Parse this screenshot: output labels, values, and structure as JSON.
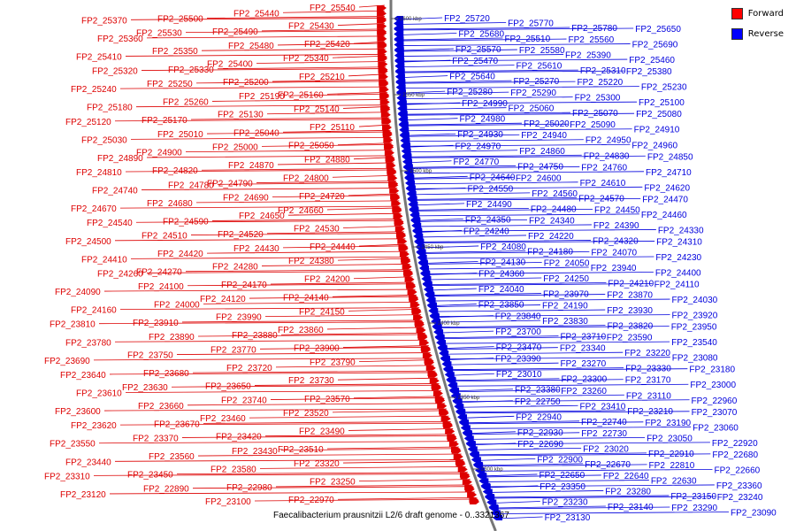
{
  "caption": "Faecalibacterium prausnitzii L2/6 draft genome - 0..3321367",
  "legend": [
    {
      "label": "Forward",
      "color": "#ff0000"
    },
    {
      "label": "Reverse",
      "color": "#0000ff"
    }
  ],
  "colors": {
    "forward": "#dd0000",
    "reverse": "#0000dd",
    "backbone": "#777777"
  },
  "scale_ticks": [
    "2600 kbp",
    "2550 kbp",
    "2500 kbp",
    "2450 kbp",
    "2400 kbp",
    "2350 kbp",
    "2300 kbp"
  ],
  "forward_genes": [
    "FP2_25540",
    "FP2_25440",
    "FP2_25500",
    "FP2_25370",
    "FP2_25430",
    "FP2_25490",
    "FP2_25530",
    "FP2_25360",
    "FP2_25420",
    "FP2_25480",
    "FP2_25350",
    "FP2_25410",
    "FP2_25340",
    "FP2_25400",
    "FP2_25330",
    "FP2_25320",
    "FP2_25210",
    "FP2_25200",
    "FP2_25250",
    "FP2_25240",
    "FP2_25160",
    "FP2_25190",
    "FP2_25260",
    "FP2_25180",
    "FP2_25140",
    "FP2_25130",
    "FP2_25170",
    "FP2_25120",
    "FP2_25110",
    "FP2_25040",
    "FP2_25010",
    "FP2_25030",
    "FP2_25050",
    "FP2_25000",
    "FP2_24900",
    "FP2_24890",
    "FP2_24880",
    "FP2_24870",
    "FP2_24820",
    "FP2_24810",
    "FP2_24800",
    "FP2_24790",
    "FP2_24780",
    "FP2_24740",
    "FP2_24720",
    "FP2_24690",
    "FP2_24680",
    "FP2_24670",
    "FP2_24660",
    "FP2_24650",
    "FP2_24590",
    "FP2_24540",
    "FP2_24530",
    "FP2_24520",
    "FP2_24510",
    "FP2_24500",
    "FP2_24440",
    "FP2_24430",
    "FP2_24420",
    "FP2_24410",
    "FP2_24380",
    "FP2_24280",
    "FP2_24270",
    "FP2_24260",
    "FP2_24200",
    "FP2_24170",
    "FP2_24100",
    "FP2_24090",
    "FP2_24140",
    "FP2_24120",
    "FP2_24000",
    "FP2_24160",
    "FP2_24150",
    "FP2_23990",
    "FP2_23910",
    "FP2_23810",
    "FP2_23860",
    "FP2_23880",
    "FP2_23890",
    "FP2_23780",
    "FP2_23900",
    "FP2_23770",
    "FP2_23750",
    "FP2_23690",
    "FP2_23790",
    "FP2_23720",
    "FP2_23680",
    "FP2_23640",
    "FP2_23730",
    "FP2_23650",
    "FP2_23630",
    "FP2_23610",
    "FP2_23570",
    "FP2_23740",
    "FP2_23660",
    "FP2_23600",
    "FP2_23520",
    "FP2_23460",
    "FP2_23670",
    "FP2_23620",
    "FP2_23490",
    "FP2_23420",
    "FP2_23370",
    "FP2_23550",
    "FP2_23510",
    "FP2_23430",
    "FP2_23560",
    "FP2_23440",
    "FP2_23320",
    "FP2_23580",
    "FP2_23450",
    "FP2_23310",
    "FP2_23250",
    "FP2_22980",
    "FP2_22890",
    "FP2_23120",
    "FP2_22970",
    "FP2_23100"
  ],
  "reverse_genes": [
    "FP2_25720",
    "FP2_25770",
    "FP2_25780",
    "FP2_25650",
    "FP2_25680",
    "FP2_25510",
    "FP2_25560",
    "FP2_25690",
    "FP2_25570",
    "FP2_25580",
    "FP2_25390",
    "FP2_25460",
    "FP2_25470",
    "FP2_25610",
    "FP2_25310",
    "FP2_25380",
    "FP2_25640",
    "FP2_25270",
    "FP2_25220",
    "FP2_25230",
    "FP2_25280",
    "FP2_25290",
    "FP2_25300",
    "FP2_25100",
    "FP2_24990",
    "FP2_25060",
    "FP2_25070",
    "FP2_25080",
    "FP2_24980",
    "FP2_25020",
    "FP2_25090",
    "FP2_24910",
    "FP2_24930",
    "FP2_24940",
    "FP2_24950",
    "FP2_24960",
    "FP2_24970",
    "FP2_24860",
    "FP2_24830",
    "FP2_24850",
    "FP2_24770",
    "FP2_24750",
    "FP2_24760",
    "FP2_24710",
    "FP2_24640",
    "FP2_24600",
    "FP2_24610",
    "FP2_24620",
    "FP2_24550",
    "FP2_24560",
    "FP2_24570",
    "FP2_24470",
    "FP2_24490",
    "FP2_24480",
    "FP2_24450",
    "FP2_24460",
    "FP2_24350",
    "FP2_24340",
    "FP2_24390",
    "FP2_24330",
    "FP2_24240",
    "FP2_24220",
    "FP2_24320",
    "FP2_24310",
    "FP2_24080",
    "FP2_24180",
    "FP2_24070",
    "FP2_24230",
    "FP2_24130",
    "FP2_24050",
    "FP2_23940",
    "FP2_24400",
    "FP2_24360",
    "FP2_24250",
    "FP2_24210",
    "FP2_24110",
    "FP2_24040",
    "FP2_23970",
    "FP2_23870",
    "FP2_24030",
    "FP2_23850",
    "FP2_24190",
    "FP2_23930",
    "FP2_23920",
    "FP2_23840",
    "FP2_23830",
    "FP2_23820",
    "FP2_23950",
    "FP2_23700",
    "FP2_23710",
    "FP2_23590",
    "FP2_23540",
    "FP2_23470",
    "FP2_23340",
    "FP2_23220",
    "FP2_23080",
    "FP2_23390",
    "FP2_23270",
    "FP2_23330",
    "FP2_23180",
    "FP2_23010",
    "FP2_23300",
    "FP2_23170",
    "FP2_23000",
    "FP2_23380",
    "FP2_23260",
    "FP2_23110",
    "FP2_22960",
    "FP2_22750",
    "FP2_23410",
    "FP2_23210",
    "FP2_23070",
    "FP2_22940",
    "FP2_22740",
    "FP2_23190",
    "FP2_23060",
    "FP2_22930",
    "FP2_22730",
    "FP2_23050",
    "FP2_22920",
    "FP2_22690",
    "FP2_23020",
    "FP2_22910",
    "FP2_22680",
    "FP2_22900",
    "FP2_22670",
    "FP2_22810",
    "FP2_22660",
    "FP2_22650",
    "FP2_22640",
    "FP2_22630",
    "FP2_23360",
    "FP2_23350",
    "FP2_23280",
    "FP2_23150",
    "FP2_23240",
    "FP2_23230",
    "FP2_23140",
    "FP2_23290",
    "FP2_23090",
    "FP2_23130"
  ]
}
